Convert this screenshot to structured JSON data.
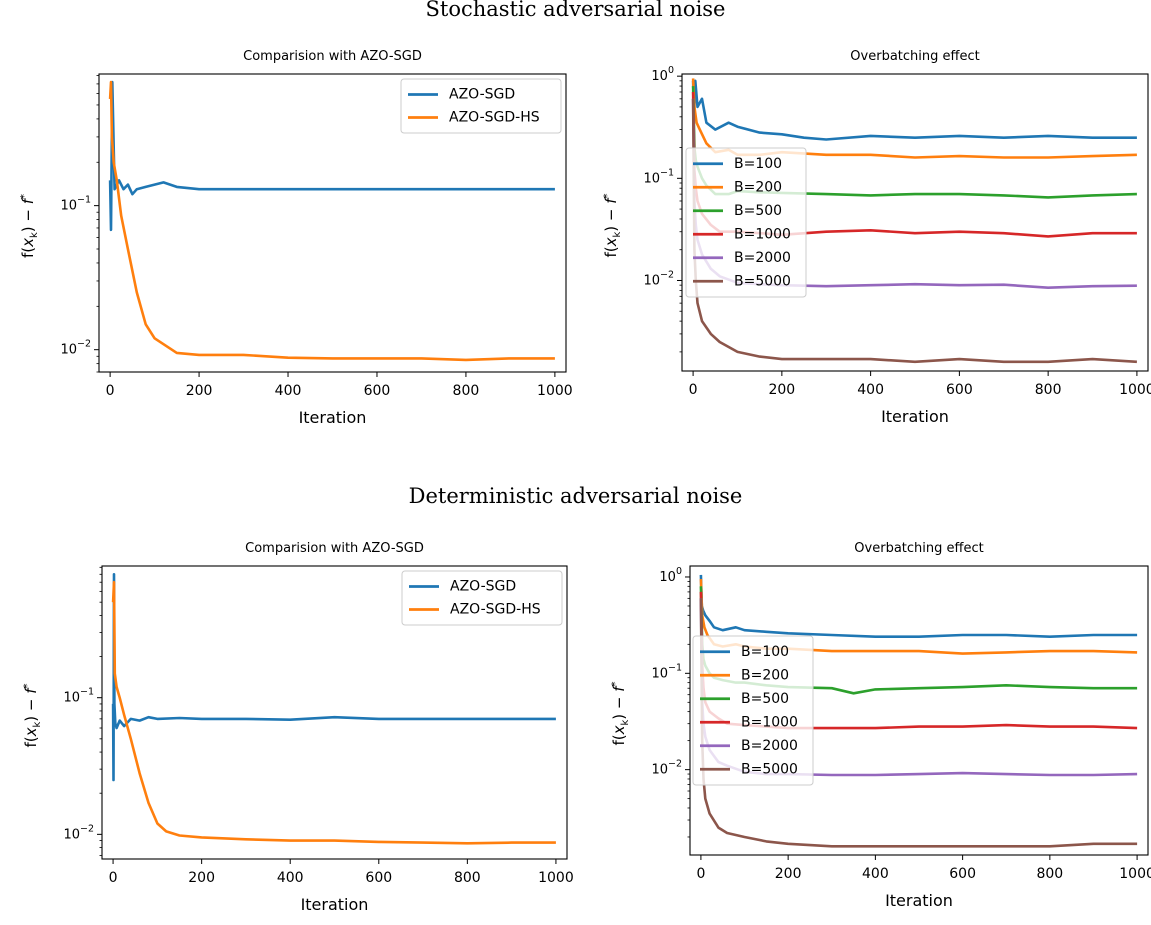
{
  "figure": {
    "row_titles": [
      "Stochastic adversarial noise",
      "Deterministic adversarial noise"
    ]
  },
  "colors": {
    "blue": "#1f77b4",
    "orange": "#ff7f0e",
    "green": "#2ca02c",
    "red": "#d62728",
    "purple": "#9467bd",
    "brown": "#8c564b"
  },
  "chart_data": [
    {
      "type": "line",
      "title": "Comparision with AZO-SGD",
      "xlabel": "Iteration",
      "ylabel": "f(x_k) − f*",
      "yscale": "log",
      "xlim": [
        -25,
        1025
      ],
      "ylim": [
        0.007,
        0.82
      ],
      "xticks": [
        0,
        200,
        400,
        600,
        800,
        1000
      ],
      "yticks": [
        0.01,
        0.1
      ],
      "ytick_labels": [
        "10^-2",
        "10^-1"
      ],
      "legend": "upper right",
      "series": [
        {
          "name": "AZO-SGD",
          "color": "#1f77b4",
          "x": [
            0,
            2,
            5,
            10,
            20,
            30,
            40,
            50,
            60,
            80,
            100,
            120,
            150,
            200,
            300,
            400,
            500,
            600,
            700,
            800,
            900,
            1000
          ],
          "y": [
            0.15,
            0.068,
            0.72,
            0.13,
            0.15,
            0.13,
            0.14,
            0.12,
            0.13,
            0.135,
            0.14,
            0.145,
            0.135,
            0.13,
            0.13,
            0.13,
            0.13,
            0.13,
            0.13,
            0.13,
            0.13,
            0.13
          ]
        },
        {
          "name": "AZO-SGD-HS",
          "color": "#ff7f0e",
          "x": [
            0,
            2,
            4,
            8,
            15,
            25,
            40,
            60,
            80,
            100,
            150,
            200,
            300,
            400,
            500,
            600,
            700,
            800,
            900,
            1000
          ],
          "y": [
            0.55,
            0.72,
            0.3,
            0.2,
            0.15,
            0.085,
            0.05,
            0.025,
            0.015,
            0.012,
            0.0095,
            0.0092,
            0.0092,
            0.0088,
            0.0087,
            0.0087,
            0.0087,
            0.0085,
            0.0087,
            0.0087
          ]
        }
      ]
    },
    {
      "type": "line",
      "title": "Overbatching effect",
      "xlabel": "Iteration",
      "ylabel": "f(x_k) − f*",
      "yscale": "log",
      "xlim": [
        -25,
        1025
      ],
      "ylim": [
        0.0013,
        1.05
      ],
      "xticks": [
        0,
        200,
        400,
        600,
        800,
        1000
      ],
      "yticks": [
        0.01,
        0.1,
        1
      ],
      "ytick_labels": [
        "10^-2",
        "10^-1",
        "10^0"
      ],
      "legend": "center left",
      "series": [
        {
          "name": "B=100",
          "color": "#1f77b4",
          "x": [
            0,
            2,
            5,
            10,
            20,
            30,
            50,
            80,
            100,
            150,
            200,
            250,
            300,
            400,
            500,
            600,
            700,
            800,
            900,
            1000
          ],
          "y": [
            0.9,
            0.4,
            0.9,
            0.5,
            0.6,
            0.35,
            0.3,
            0.35,
            0.32,
            0.28,
            0.27,
            0.25,
            0.24,
            0.26,
            0.25,
            0.26,
            0.25,
            0.26,
            0.25,
            0.25
          ]
        },
        {
          "name": "B=200",
          "color": "#ff7f0e",
          "x": [
            0,
            3,
            8,
            15,
            30,
            50,
            80,
            100,
            150,
            200,
            300,
            400,
            500,
            600,
            700,
            800,
            900,
            1000
          ],
          "y": [
            0.95,
            0.5,
            0.35,
            0.3,
            0.22,
            0.18,
            0.19,
            0.17,
            0.17,
            0.18,
            0.17,
            0.17,
            0.16,
            0.165,
            0.16,
            0.16,
            0.165,
            0.17
          ]
        },
        {
          "name": "B=500",
          "color": "#2ca02c",
          "x": [
            0,
            3,
            6,
            10,
            20,
            30,
            50,
            80,
            100,
            150,
            200,
            300,
            400,
            500,
            600,
            700,
            800,
            900,
            1000
          ],
          "y": [
            0.8,
            0.2,
            0.15,
            0.13,
            0.1,
            0.085,
            0.07,
            0.07,
            0.075,
            0.073,
            0.072,
            0.07,
            0.068,
            0.07,
            0.07,
            0.068,
            0.065,
            0.068,
            0.07
          ]
        },
        {
          "name": "B=1000",
          "color": "#d62728",
          "x": [
            0,
            3,
            6,
            10,
            20,
            40,
            60,
            100,
            150,
            200,
            300,
            400,
            500,
            600,
            700,
            800,
            900,
            1000
          ],
          "y": [
            0.7,
            0.12,
            0.08,
            0.06,
            0.045,
            0.035,
            0.03,
            0.03,
            0.029,
            0.028,
            0.03,
            0.031,
            0.029,
            0.03,
            0.029,
            0.027,
            0.029,
            0.029
          ]
        },
        {
          "name": "B=2000",
          "color": "#9467bd",
          "x": [
            0,
            3,
            6,
            10,
            20,
            40,
            60,
            100,
            150,
            200,
            300,
            400,
            500,
            600,
            700,
            800,
            900,
            1000
          ],
          "y": [
            0.6,
            0.06,
            0.035,
            0.025,
            0.018,
            0.013,
            0.011,
            0.0095,
            0.0092,
            0.009,
            0.0088,
            0.009,
            0.0092,
            0.009,
            0.0091,
            0.0085,
            0.0088,
            0.0089
          ]
        },
        {
          "name": "B=5000",
          "color": "#8c564b",
          "x": [
            0,
            3,
            6,
            10,
            20,
            40,
            60,
            100,
            150,
            200,
            300,
            400,
            500,
            600,
            700,
            800,
            900,
            1000
          ],
          "y": [
            0.6,
            0.02,
            0.01,
            0.006,
            0.004,
            0.003,
            0.0025,
            0.002,
            0.0018,
            0.0017,
            0.0017,
            0.0017,
            0.0016,
            0.0017,
            0.0016,
            0.0016,
            0.0017,
            0.0016
          ]
        }
      ]
    },
    {
      "type": "line",
      "title": "Comparision with AZO-SGD",
      "xlabel": "Iteration",
      "ylabel": "f(x_k) − f*",
      "yscale": "log",
      "xlim": [
        -25,
        1025
      ],
      "ylim": [
        0.0066,
        0.92
      ],
      "xticks": [
        0,
        200,
        400,
        600,
        800,
        1000
      ],
      "yticks": [
        0.01,
        0.1
      ],
      "ytick_labels": [
        "10^-2",
        "10^-1"
      ],
      "legend": "upper right",
      "series": [
        {
          "name": "AZO-SGD",
          "color": "#1f77b4",
          "x": [
            0,
            1,
            2,
            3,
            5,
            8,
            15,
            25,
            40,
            60,
            80,
            100,
            150,
            200,
            300,
            400,
            500,
            600,
            700,
            800,
            900,
            1000
          ],
          "y": [
            0.09,
            0.025,
            0.8,
            0.09,
            0.065,
            0.06,
            0.068,
            0.062,
            0.07,
            0.068,
            0.072,
            0.07,
            0.071,
            0.07,
            0.07,
            0.069,
            0.072,
            0.07,
            0.07,
            0.07,
            0.07,
            0.07
          ]
        },
        {
          "name": "AZO-SGD-HS",
          "color": "#ff7f0e",
          "x": [
            0,
            2,
            4,
            8,
            15,
            25,
            40,
            60,
            80,
            100,
            120,
            150,
            200,
            300,
            400,
            500,
            600,
            700,
            800,
            900,
            1000
          ],
          "y": [
            0.5,
            0.7,
            0.15,
            0.12,
            0.1,
            0.075,
            0.05,
            0.028,
            0.017,
            0.012,
            0.0105,
            0.0098,
            0.0095,
            0.0092,
            0.009,
            0.009,
            0.0088,
            0.0087,
            0.0086,
            0.0087,
            0.0087
          ]
        }
      ]
    },
    {
      "type": "line",
      "title": "Overbatching effect",
      "xlabel": "Iteration",
      "ylabel": "f(x_k) − f*",
      "yscale": "log",
      "xlim": [
        -25,
        1025
      ],
      "ylim": [
        0.0013,
        1.3
      ],
      "xticks": [
        0,
        200,
        400,
        600,
        800,
        1000
      ],
      "yticks": [
        0.01,
        0.1,
        1
      ],
      "ytick_labels": [
        "10^-2",
        "10^-1",
        "10^0"
      ],
      "legend": "center left",
      "series": [
        {
          "name": "B=100",
          "color": "#1f77b4",
          "x": [
            0,
            2,
            5,
            10,
            20,
            30,
            50,
            80,
            100,
            150,
            200,
            300,
            400,
            500,
            600,
            700,
            800,
            900,
            1000
          ],
          "y": [
            1.05,
            0.5,
            0.45,
            0.4,
            0.35,
            0.3,
            0.28,
            0.3,
            0.28,
            0.27,
            0.26,
            0.25,
            0.24,
            0.24,
            0.25,
            0.25,
            0.24,
            0.25,
            0.25
          ]
        },
        {
          "name": "B=200",
          "color": "#ff7f0e",
          "x": [
            0,
            3,
            8,
            15,
            30,
            50,
            80,
            100,
            150,
            200,
            300,
            400,
            500,
            600,
            700,
            800,
            900,
            1000
          ],
          "y": [
            0.95,
            0.4,
            0.3,
            0.25,
            0.2,
            0.19,
            0.2,
            0.19,
            0.18,
            0.18,
            0.17,
            0.17,
            0.17,
            0.16,
            0.165,
            0.17,
            0.17,
            0.165
          ]
        },
        {
          "name": "B=500",
          "color": "#2ca02c",
          "x": [
            0,
            3,
            6,
            10,
            20,
            30,
            50,
            80,
            100,
            150,
            200,
            300,
            350,
            400,
            500,
            600,
            700,
            800,
            900,
            1000
          ],
          "y": [
            0.8,
            0.2,
            0.14,
            0.12,
            0.1,
            0.09,
            0.085,
            0.08,
            0.08,
            0.075,
            0.072,
            0.07,
            0.062,
            0.068,
            0.07,
            0.072,
            0.075,
            0.072,
            0.07,
            0.07
          ]
        },
        {
          "name": "B=1000",
          "color": "#d62728",
          "x": [
            0,
            3,
            6,
            10,
            20,
            40,
            60,
            100,
            150,
            200,
            300,
            400,
            500,
            600,
            700,
            800,
            900,
            1000
          ],
          "y": [
            0.7,
            0.12,
            0.07,
            0.05,
            0.04,
            0.034,
            0.03,
            0.029,
            0.028,
            0.027,
            0.027,
            0.027,
            0.028,
            0.028,
            0.029,
            0.028,
            0.028,
            0.027
          ]
        },
        {
          "name": "B=2000",
          "color": "#9467bd",
          "x": [
            0,
            3,
            6,
            10,
            20,
            40,
            60,
            100,
            150,
            200,
            300,
            400,
            500,
            600,
            700,
            800,
            900,
            1000
          ],
          "y": [
            0.6,
            0.05,
            0.03,
            0.022,
            0.016,
            0.012,
            0.011,
            0.0095,
            0.009,
            0.009,
            0.0088,
            0.0088,
            0.009,
            0.0092,
            0.009,
            0.0088,
            0.0088,
            0.009
          ]
        },
        {
          "name": "B=5000",
          "color": "#8c564b",
          "x": [
            0,
            3,
            6,
            10,
            20,
            40,
            60,
            100,
            150,
            200,
            300,
            400,
            500,
            600,
            700,
            800,
            900,
            1000
          ],
          "y": [
            0.6,
            0.02,
            0.008,
            0.005,
            0.0035,
            0.0025,
            0.0022,
            0.002,
            0.0018,
            0.0017,
            0.0016,
            0.0016,
            0.0016,
            0.0016,
            0.0016,
            0.0016,
            0.0017,
            0.0017
          ]
        }
      ]
    }
  ]
}
